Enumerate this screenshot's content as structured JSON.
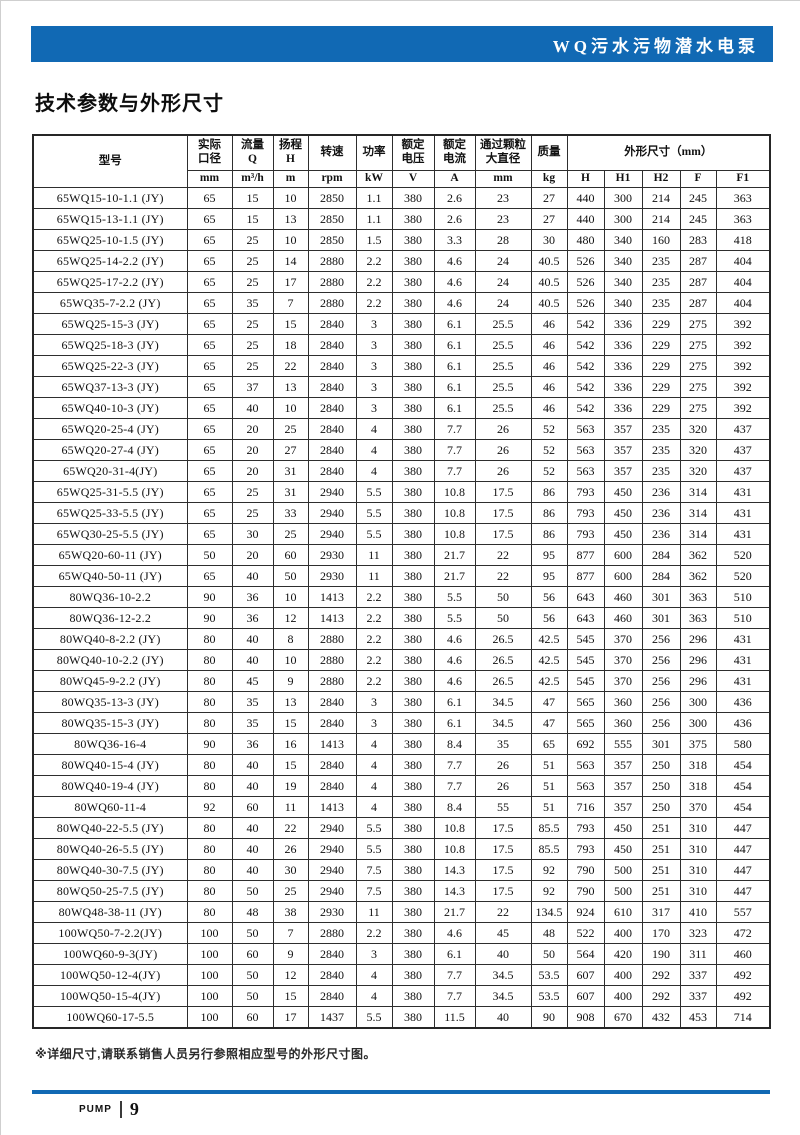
{
  "colors": {
    "accent_blue": "#1169b4",
    "table_border": "#262626"
  },
  "band": {
    "title": "WQ污水污物潜水电泵"
  },
  "section": {
    "title": "技术参数与外形尺寸"
  },
  "table": {
    "header": {
      "model": "型号",
      "cols": [
        {
          "label": "实际\n口径",
          "unit": "mm"
        },
        {
          "label": "流量\nQ",
          "unit": "m³/h"
        },
        {
          "label": "扬程\nH",
          "unit": "m"
        },
        {
          "label": "转速",
          "unit": "rpm"
        },
        {
          "label": "功率",
          "unit": "kW"
        },
        {
          "label": "额定\n电压",
          "unit": "V"
        },
        {
          "label": "额定\n电流",
          "unit": "A"
        },
        {
          "label": "通过颗粒\n大直径",
          "unit": "mm"
        },
        {
          "label": "质量",
          "unit": "kg"
        }
      ],
      "dims": {
        "label": "外形尺寸（mm）",
        "units": [
          "H",
          "H1",
          "H2",
          "F",
          "F1"
        ]
      }
    },
    "rows": [
      [
        "65WQ15-10-1.1 (JY)",
        "65",
        "15",
        "10",
        "2850",
        "1.1",
        "380",
        "2.6",
        "23",
        "27",
        "440",
        "300",
        "214",
        "245",
        "363"
      ],
      [
        "65WQ15-13-1.1 (JY)",
        "65",
        "15",
        "13",
        "2850",
        "1.1",
        "380",
        "2.6",
        "23",
        "27",
        "440",
        "300",
        "214",
        "245",
        "363"
      ],
      [
        "65WQ25-10-1.5 (JY)",
        "65",
        "25",
        "10",
        "2850",
        "1.5",
        "380",
        "3.3",
        "28",
        "30",
        "480",
        "340",
        "160",
        "283",
        "418"
      ],
      [
        "65WQ25-14-2.2 (JY)",
        "65",
        "25",
        "14",
        "2880",
        "2.2",
        "380",
        "4.6",
        "24",
        "40.5",
        "526",
        "340",
        "235",
        "287",
        "404"
      ],
      [
        "65WQ25-17-2.2 (JY)",
        "65",
        "25",
        "17",
        "2880",
        "2.2",
        "380",
        "4.6",
        "24",
        "40.5",
        "526",
        "340",
        "235",
        "287",
        "404"
      ],
      [
        "65WQ35-7-2.2 (JY)",
        "65",
        "35",
        "7",
        "2880",
        "2.2",
        "380",
        "4.6",
        "24",
        "40.5",
        "526",
        "340",
        "235",
        "287",
        "404"
      ],
      [
        "65WQ25-15-3 (JY)",
        "65",
        "25",
        "15",
        "2840",
        "3",
        "380",
        "6.1",
        "25.5",
        "46",
        "542",
        "336",
        "229",
        "275",
        "392"
      ],
      [
        "65WQ25-18-3 (JY)",
        "65",
        "25",
        "18",
        "2840",
        "3",
        "380",
        "6.1",
        "25.5",
        "46",
        "542",
        "336",
        "229",
        "275",
        "392"
      ],
      [
        "65WQ25-22-3 (JY)",
        "65",
        "25",
        "22",
        "2840",
        "3",
        "380",
        "6.1",
        "25.5",
        "46",
        "542",
        "336",
        "229",
        "275",
        "392"
      ],
      [
        "65WQ37-13-3 (JY)",
        "65",
        "37",
        "13",
        "2840",
        "3",
        "380",
        "6.1",
        "25.5",
        "46",
        "542",
        "336",
        "229",
        "275",
        "392"
      ],
      [
        "65WQ40-10-3 (JY)",
        "65",
        "40",
        "10",
        "2840",
        "3",
        "380",
        "6.1",
        "25.5",
        "46",
        "542",
        "336",
        "229",
        "275",
        "392"
      ],
      [
        "65WQ20-25-4 (JY)",
        "65",
        "20",
        "25",
        "2840",
        "4",
        "380",
        "7.7",
        "26",
        "52",
        "563",
        "357",
        "235",
        "320",
        "437"
      ],
      [
        "65WQ20-27-4 (JY)",
        "65",
        "20",
        "27",
        "2840",
        "4",
        "380",
        "7.7",
        "26",
        "52",
        "563",
        "357",
        "235",
        "320",
        "437"
      ],
      [
        "65WQ20-31-4(JY)",
        "65",
        "20",
        "31",
        "2840",
        "4",
        "380",
        "7.7",
        "26",
        "52",
        "563",
        "357",
        "235",
        "320",
        "437"
      ],
      [
        "65WQ25-31-5.5 (JY)",
        "65",
        "25",
        "31",
        "2940",
        "5.5",
        "380",
        "10.8",
        "17.5",
        "86",
        "793",
        "450",
        "236",
        "314",
        "431"
      ],
      [
        "65WQ25-33-5.5 (JY)",
        "65",
        "25",
        "33",
        "2940",
        "5.5",
        "380",
        "10.8",
        "17.5",
        "86",
        "793",
        "450",
        "236",
        "314",
        "431"
      ],
      [
        "65WQ30-25-5.5 (JY)",
        "65",
        "30",
        "25",
        "2940",
        "5.5",
        "380",
        "10.8",
        "17.5",
        "86",
        "793",
        "450",
        "236",
        "314",
        "431"
      ],
      [
        "65WQ20-60-11 (JY)",
        "50",
        "20",
        "60",
        "2930",
        "11",
        "380",
        "21.7",
        "22",
        "95",
        "877",
        "600",
        "284",
        "362",
        "520"
      ],
      [
        "65WQ40-50-11 (JY)",
        "65",
        "40",
        "50",
        "2930",
        "11",
        "380",
        "21.7",
        "22",
        "95",
        "877",
        "600",
        "284",
        "362",
        "520"
      ],
      [
        "80WQ36-10-2.2",
        "90",
        "36",
        "10",
        "1413",
        "2.2",
        "380",
        "5.5",
        "50",
        "56",
        "643",
        "460",
        "301",
        "363",
        "510"
      ],
      [
        "80WQ36-12-2.2",
        "90",
        "36",
        "12",
        "1413",
        "2.2",
        "380",
        "5.5",
        "50",
        "56",
        "643",
        "460",
        "301",
        "363",
        "510"
      ],
      [
        "80WQ40-8-2.2 (JY)",
        "80",
        "40",
        "8",
        "2880",
        "2.2",
        "380",
        "4.6",
        "26.5",
        "42.5",
        "545",
        "370",
        "256",
        "296",
        "431"
      ],
      [
        "80WQ40-10-2.2 (JY)",
        "80",
        "40",
        "10",
        "2880",
        "2.2",
        "380",
        "4.6",
        "26.5",
        "42.5",
        "545",
        "370",
        "256",
        "296",
        "431"
      ],
      [
        "80WQ45-9-2.2 (JY)",
        "80",
        "45",
        "9",
        "2880",
        "2.2",
        "380",
        "4.6",
        "26.5",
        "42.5",
        "545",
        "370",
        "256",
        "296",
        "431"
      ],
      [
        "80WQ35-13-3 (JY)",
        "80",
        "35",
        "13",
        "2840",
        "3",
        "380",
        "6.1",
        "34.5",
        "47",
        "565",
        "360",
        "256",
        "300",
        "436"
      ],
      [
        "80WQ35-15-3 (JY)",
        "80",
        "35",
        "15",
        "2840",
        "3",
        "380",
        "6.1",
        "34.5",
        "47",
        "565",
        "360",
        "256",
        "300",
        "436"
      ],
      [
        "80WQ36-16-4",
        "90",
        "36",
        "16",
        "1413",
        "4",
        "380",
        "8.4",
        "35",
        "65",
        "692",
        "555",
        "301",
        "375",
        "580"
      ],
      [
        "80WQ40-15-4 (JY)",
        "80",
        "40",
        "15",
        "2840",
        "4",
        "380",
        "7.7",
        "26",
        "51",
        "563",
        "357",
        "250",
        "318",
        "454"
      ],
      [
        "80WQ40-19-4 (JY)",
        "80",
        "40",
        "19",
        "2840",
        "4",
        "380",
        "7.7",
        "26",
        "51",
        "563",
        "357",
        "250",
        "318",
        "454"
      ],
      [
        "80WQ60-11-4",
        "92",
        "60",
        "11",
        "1413",
        "4",
        "380",
        "8.4",
        "55",
        "51",
        "716",
        "357",
        "250",
        "370",
        "454"
      ],
      [
        "80WQ40-22-5.5 (JY)",
        "80",
        "40",
        "22",
        "2940",
        "5.5",
        "380",
        "10.8",
        "17.5",
        "85.5",
        "793",
        "450",
        "251",
        "310",
        "447"
      ],
      [
        "80WQ40-26-5.5 (JY)",
        "80",
        "40",
        "26",
        "2940",
        "5.5",
        "380",
        "10.8",
        "17.5",
        "85.5",
        "793",
        "450",
        "251",
        "310",
        "447"
      ],
      [
        "80WQ40-30-7.5 (JY)",
        "80",
        "40",
        "30",
        "2940",
        "7.5",
        "380",
        "14.3",
        "17.5",
        "92",
        "790",
        "500",
        "251",
        "310",
        "447"
      ],
      [
        "80WQ50-25-7.5 (JY)",
        "80",
        "50",
        "25",
        "2940",
        "7.5",
        "380",
        "14.3",
        "17.5",
        "92",
        "790",
        "500",
        "251",
        "310",
        "447"
      ],
      [
        "80WQ48-38-11 (JY)",
        "80",
        "48",
        "38",
        "2930",
        "11",
        "380",
        "21.7",
        "22",
        "134.5",
        "924",
        "610",
        "317",
        "410",
        "557"
      ],
      [
        "100WQ50-7-2.2(JY)",
        "100",
        "50",
        "7",
        "2880",
        "2.2",
        "380",
        "4.6",
        "45",
        "48",
        "522",
        "400",
        "170",
        "323",
        "472"
      ],
      [
        "100WQ60-9-3(JY)",
        "100",
        "60",
        "9",
        "2840",
        "3",
        "380",
        "6.1",
        "40",
        "50",
        "564",
        "420",
        "190",
        "311",
        "460"
      ],
      [
        "100WQ50-12-4(JY)",
        "100",
        "50",
        "12",
        "2840",
        "4",
        "380",
        "7.7",
        "34.5",
        "53.5",
        "607",
        "400",
        "292",
        "337",
        "492"
      ],
      [
        "100WQ50-15-4(JY)",
        "100",
        "50",
        "15",
        "2840",
        "4",
        "380",
        "7.7",
        "34.5",
        "53.5",
        "607",
        "400",
        "292",
        "337",
        "492"
      ],
      [
        "100WQ60-17-5.5",
        "100",
        "60",
        "17",
        "1437",
        "5.5",
        "380",
        "11.5",
        "40",
        "90",
        "908",
        "670",
        "432",
        "453",
        "714"
      ]
    ]
  },
  "footnote": {
    "text": "※详细尺寸,请联系销售人员另行参照相应型号的外形尺寸图。"
  },
  "footer": {
    "brand": "PUMP",
    "page_number": "9"
  }
}
